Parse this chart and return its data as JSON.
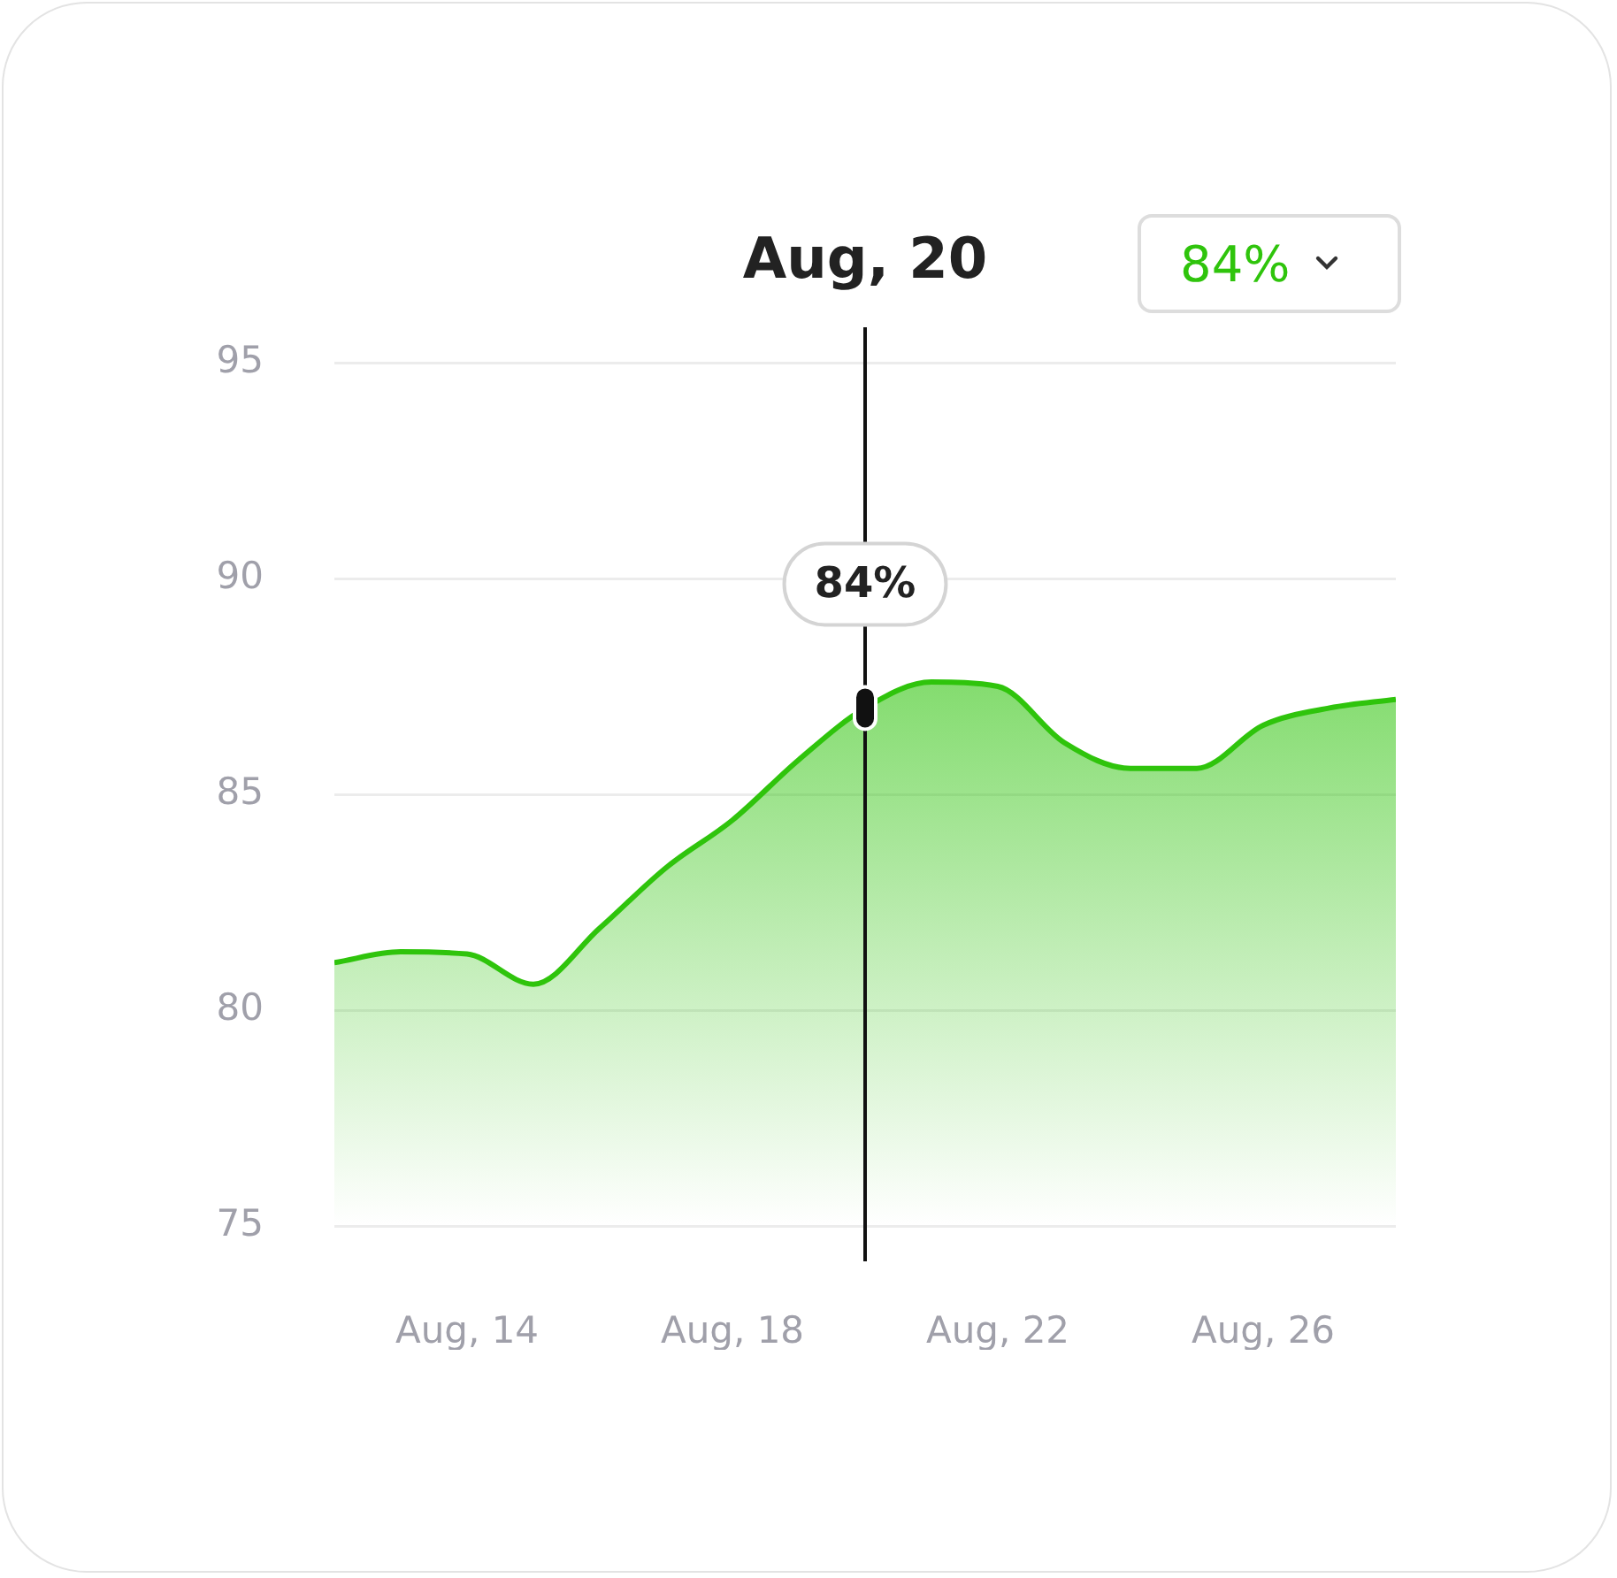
{
  "chart_data": {
    "type": "area",
    "color": "#2fc40c",
    "x": [
      "--08-12",
      "--08-13",
      "--08-14",
      "--08-15",
      "--08-16",
      "--08-17",
      "--08-18",
      "--08-19",
      "--08-20",
      "--08-21",
      "--08-22",
      "--08-23",
      "--08-24",
      "--08-25",
      "--08-26",
      "--08-27",
      "--08-28"
    ],
    "values": [
      81.1,
      81.35,
      81.3,
      80.6,
      81.9,
      83.3,
      84.4,
      85.8,
      87.0,
      87.6,
      87.5,
      86.2,
      85.6,
      85.6,
      86.6,
      87.0,
      87.2
    ],
    "xlim": [
      "--08-12",
      "--08-28"
    ],
    "xticks": [
      {
        "value": "--08-14",
        "label": "Aug, 14"
      },
      {
        "value": "--08-18",
        "label": "Aug, 18"
      },
      {
        "value": "--08-22",
        "label": "Aug, 22"
      },
      {
        "value": "--08-26",
        "label": "Aug, 26"
      }
    ],
    "ylim": [
      75,
      95
    ],
    "yticks": [
      75,
      80,
      85,
      90,
      95
    ],
    "grid": "y",
    "legend": false,
    "marker": "none",
    "ref_lines": [
      {
        "axis": "x",
        "value": "--08-20",
        "label": "Aug, 20"
      }
    ],
    "annotations": [
      {
        "text": "84%",
        "x": "--08-20",
        "y": 87.0
      },
      "84%"
    ]
  }
}
